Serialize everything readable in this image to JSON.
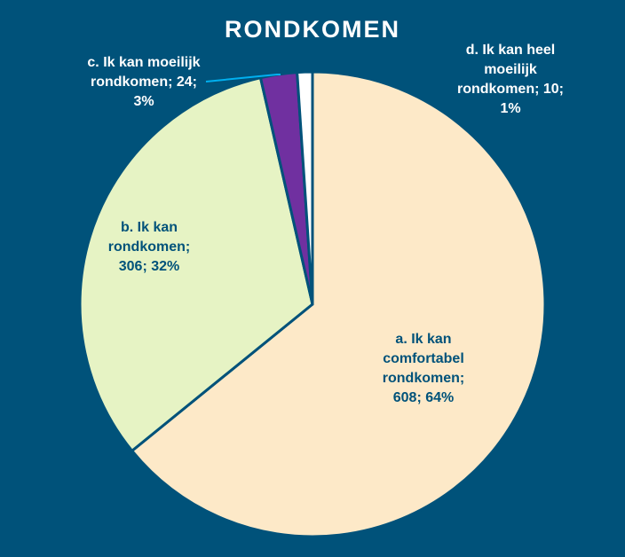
{
  "chart_data": {
    "type": "pie",
    "title": "RONDKOMEN",
    "categories": [
      "a. Ik kan comfortabel rondkomen",
      "b. Ik kan rondkomen",
      "c. Ik kan moeilijk rondkomen",
      "d. Ik kan heel moeilijk rondkomen"
    ],
    "values": [
      608,
      306,
      24,
      10
    ],
    "percentages": [
      "64%",
      "32%",
      "3%",
      "1%"
    ],
    "colors": [
      "#fde9c8",
      "#e6f3c4",
      "#7030a0",
      "#ffffff"
    ],
    "data_labels": [
      [
        "a. Ik kan",
        "comfortabel",
        "rondkomen;",
        "608; 64%"
      ],
      [
        "b. Ik kan",
        "rondkomen;",
        "306; 32%"
      ],
      [
        "c. Ik kan moeilijk",
        "rondkomen; 24;",
        "3%"
      ],
      [
        "d. Ik kan heel",
        "moeilijk",
        "rondkomen; 10;",
        "1%"
      ]
    ],
    "background": "#00527a",
    "label_color_inside": "#00527a",
    "label_color_outside": "#ffffff",
    "leader_line_color": "#00b0f0"
  }
}
